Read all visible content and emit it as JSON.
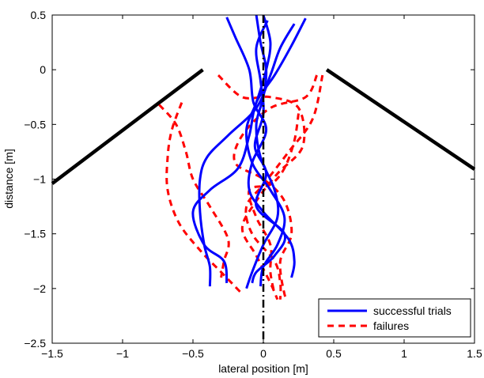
{
  "chart_data": {
    "type": "line",
    "title": "",
    "xlabel": "lateral position [m]",
    "ylabel": "distance [m]",
    "xlim": [
      -1.5,
      1.5
    ],
    "ylim": [
      -2.5,
      0.5
    ],
    "xticks": [
      -1.5,
      -1,
      -0.5,
      0,
      0.5,
      1,
      1.5
    ],
    "xtick_labels": [
      "−1.5",
      "−1",
      "−0.5",
      "0",
      "0.5",
      "1",
      "1.5"
    ],
    "yticks": [
      0.5,
      0,
      -0.5,
      -1,
      -1.5,
      -2,
      -2.5
    ],
    "ytick_labels": [
      "0.5",
      "0",
      "−0.5",
      "−1",
      "−1.5",
      "−2",
      "−2.5"
    ],
    "grid": false,
    "legend_position": "bottom-right",
    "legend": [
      {
        "label": "successful trials",
        "color": "#0000ff",
        "style": "solid"
      },
      {
        "label": "failures",
        "color": "#ff0000",
        "style": "dashed"
      }
    ],
    "walls": [
      {
        "color": "#000000",
        "points": [
          [
            -1.5,
            -1.04
          ],
          [
            -0.43,
            0
          ]
        ]
      },
      {
        "color": "#000000",
        "points": [
          [
            0.45,
            0
          ],
          [
            1.5,
            -0.91
          ]
        ]
      }
    ],
    "centerline": {
      "color": "#000000",
      "style": "dashdot",
      "points": [
        [
          0,
          0.5
        ],
        [
          0,
          -2.5
        ]
      ]
    },
    "series": [
      {
        "group": "successful trials",
        "color": "#0000ff",
        "style": "solid",
        "points": [
          [
            -0.05,
            0.5
          ],
          [
            -0.02,
            0.25
          ],
          [
            0.02,
            0.0
          ],
          [
            0.0,
            -0.25
          ],
          [
            -0.05,
            -0.5
          ],
          [
            -0.02,
            -0.8
          ],
          [
            0.08,
            -1.1
          ],
          [
            0.1,
            -1.35
          ],
          [
            0.0,
            -1.6
          ],
          [
            -0.08,
            -1.85
          ],
          [
            -0.12,
            -2.0
          ]
        ]
      },
      {
        "group": "successful trials",
        "color": "#0000ff",
        "style": "solid",
        "points": [
          [
            0.0,
            0.5
          ],
          [
            0.05,
            0.25
          ],
          [
            0.02,
            0.0
          ],
          [
            -0.05,
            -0.3
          ],
          [
            -0.12,
            -0.55
          ],
          [
            -0.08,
            -0.85
          ],
          [
            0.05,
            -1.1
          ],
          [
            0.15,
            -1.35
          ],
          [
            0.1,
            -1.6
          ],
          [
            0.0,
            -1.8
          ],
          [
            -0.02,
            -1.98
          ]
        ]
      },
      {
        "group": "successful trials",
        "color": "#0000ff",
        "style": "solid",
        "points": [
          [
            0.22,
            0.42
          ],
          [
            0.12,
            0.2
          ],
          [
            0.05,
            -0.05
          ],
          [
            -0.05,
            -0.35
          ],
          [
            -0.25,
            -0.6
          ],
          [
            -0.4,
            -0.8
          ],
          [
            -0.45,
            -1.0
          ],
          [
            -0.45,
            -1.3
          ],
          [
            -0.42,
            -1.6
          ],
          [
            -0.38,
            -1.8
          ],
          [
            -0.38,
            -1.98
          ]
        ]
      },
      {
        "group": "successful trials",
        "color": "#0000ff",
        "style": "solid",
        "points": [
          [
            0.3,
            0.47
          ],
          [
            0.2,
            0.22
          ],
          [
            0.08,
            -0.05
          ],
          [
            -0.05,
            -0.3
          ],
          [
            -0.1,
            -0.6
          ],
          [
            -0.18,
            -0.9
          ],
          [
            -0.38,
            -1.1
          ],
          [
            -0.5,
            -1.3
          ],
          [
            -0.42,
            -1.6
          ],
          [
            -0.28,
            -1.75
          ],
          [
            -0.26,
            -1.95
          ]
        ]
      },
      {
        "group": "successful trials",
        "color": "#0000ff",
        "style": "solid",
        "points": [
          [
            -0.26,
            0.48
          ],
          [
            -0.2,
            0.3
          ],
          [
            -0.1,
            0.0
          ],
          [
            -0.07,
            -0.3
          ],
          [
            0.02,
            -0.55
          ],
          [
            -0.08,
            -0.85
          ],
          [
            -0.1,
            -1.1
          ],
          [
            0.0,
            -1.3
          ],
          [
            0.18,
            -1.55
          ],
          [
            0.22,
            -1.75
          ],
          [
            0.2,
            -1.9
          ]
        ]
      },
      {
        "group": "successful trials",
        "color": "#0000ff",
        "style": "solid",
        "points": [
          [
            0.03,
            0.45
          ],
          [
            -0.05,
            0.2
          ],
          [
            -0.02,
            -0.1
          ],
          [
            0.0,
            -0.4
          ],
          [
            -0.06,
            -0.7
          ],
          [
            0.02,
            -0.95
          ],
          [
            -0.05,
            -1.25
          ],
          [
            0.15,
            -1.5
          ],
          [
            0.08,
            -1.7
          ],
          [
            -0.05,
            -1.85
          ],
          [
            -0.08,
            -1.95
          ]
        ]
      },
      {
        "group": "failures",
        "color": "#ff0000",
        "style": "dashed",
        "points": [
          [
            -0.32,
            -0.05
          ],
          [
            -0.15,
            -0.25
          ],
          [
            0.05,
            -0.25
          ],
          [
            0.25,
            -0.35
          ],
          [
            0.28,
            -0.7
          ],
          [
            0.1,
            -0.95
          ],
          [
            -0.05,
            -1.2
          ],
          [
            -0.15,
            -1.45
          ],
          [
            -0.05,
            -1.7
          ],
          [
            0.05,
            -1.95
          ],
          [
            0.1,
            -2.1
          ]
        ]
      },
      {
        "group": "failures",
        "color": "#ff0000",
        "style": "dashed",
        "points": [
          [
            0.38,
            -0.05
          ],
          [
            0.3,
            -0.25
          ],
          [
            0.05,
            -0.35
          ],
          [
            -0.15,
            -0.6
          ],
          [
            -0.2,
            -0.85
          ],
          [
            0.0,
            -1.0
          ],
          [
            0.15,
            -1.2
          ],
          [
            0.2,
            -1.5
          ],
          [
            0.12,
            -1.75
          ],
          [
            0.15,
            -2.05
          ],
          [
            0.18,
            -2.1
          ]
        ]
      },
      {
        "group": "failures",
        "color": "#ff0000",
        "style": "dashed",
        "points": [
          [
            0.42,
            -0.05
          ],
          [
            0.35,
            -0.45
          ],
          [
            0.18,
            -0.75
          ],
          [
            0.0,
            -1.05
          ],
          [
            -0.12,
            -1.25
          ],
          [
            -0.08,
            -1.5
          ],
          [
            0.08,
            -1.75
          ],
          [
            0.12,
            -1.95
          ],
          [
            0.12,
            -2.1
          ]
        ]
      },
      {
        "group": "failures",
        "color": "#ff0000",
        "style": "dashed",
        "points": [
          [
            -0.58,
            -0.3
          ],
          [
            -0.65,
            -0.55
          ],
          [
            -0.68,
            -0.8
          ],
          [
            -0.68,
            -1.1
          ],
          [
            -0.6,
            -1.4
          ],
          [
            -0.45,
            -1.65
          ],
          [
            -0.3,
            -1.85
          ],
          [
            -0.15,
            -2.05
          ]
        ]
      },
      {
        "group": "failures",
        "color": "#ff0000",
        "style": "dashed",
        "points": [
          [
            -0.74,
            -0.32
          ],
          [
            -0.62,
            -0.5
          ],
          [
            -0.55,
            -0.75
          ],
          [
            -0.5,
            -1.0
          ],
          [
            -0.38,
            -1.25
          ],
          [
            -0.25,
            -1.55
          ],
          [
            -0.28,
            -1.75
          ],
          [
            -0.3,
            -1.9
          ]
        ]
      },
      {
        "group": "failures",
        "color": "#ff0000",
        "style": "dashed",
        "points": [
          [
            0.25,
            -0.4
          ],
          [
            0.22,
            -0.65
          ],
          [
            0.15,
            -0.9
          ],
          [
            0.05,
            -1.05
          ],
          [
            -0.1,
            -1.1
          ],
          [
            -0.05,
            -1.35
          ],
          [
            0.05,
            -1.6
          ],
          [
            0.05,
            -1.85
          ],
          [
            0.08,
            -2.05
          ]
        ]
      }
    ]
  }
}
